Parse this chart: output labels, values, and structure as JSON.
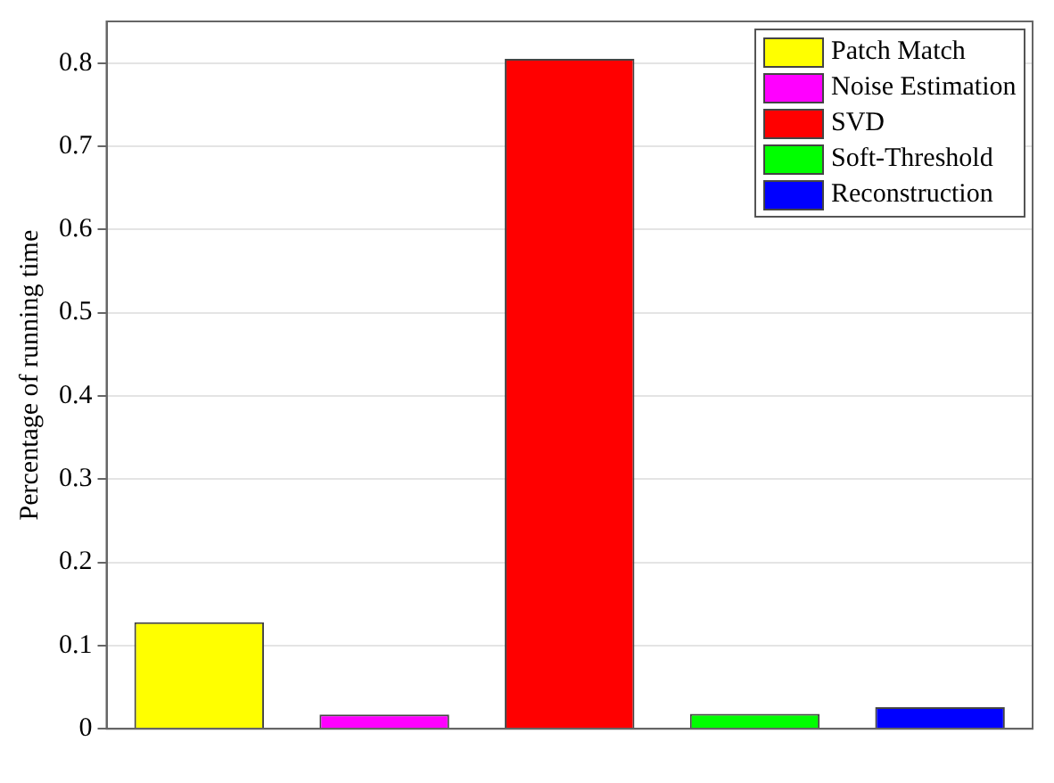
{
  "chart_data": {
    "type": "bar",
    "ylabel": "Percentage of running time",
    "categories": [
      null,
      null,
      null,
      null,
      null
    ],
    "series": [
      {
        "name": "Patch Match",
        "color": "#ffff00",
        "values": [
          0.128,
          null,
          null,
          null,
          null
        ]
      },
      {
        "name": "Noise Estimation",
        "color": "#ff00ff",
        "values": [
          null,
          0.017,
          null,
          null,
          null
        ]
      },
      {
        "name": "SVD",
        "color": "#ff0000",
        "values": [
          null,
          null,
          0.805,
          null,
          null
        ]
      },
      {
        "name": "Soft-Threshold",
        "color": "#00ff00",
        "values": [
          null,
          null,
          null,
          0.018,
          null
        ]
      },
      {
        "name": "Reconstruction",
        "color": "#0000ff",
        "values": [
          null,
          null,
          null,
          null,
          0.026
        ]
      }
    ],
    "ylim": [
      0,
      0.85
    ],
    "yticks": [
      0,
      0.1,
      0.2,
      0.3,
      0.4,
      0.5,
      0.6,
      0.7,
      0.8
    ],
    "grid": "y",
    "legend": "top right"
  }
}
